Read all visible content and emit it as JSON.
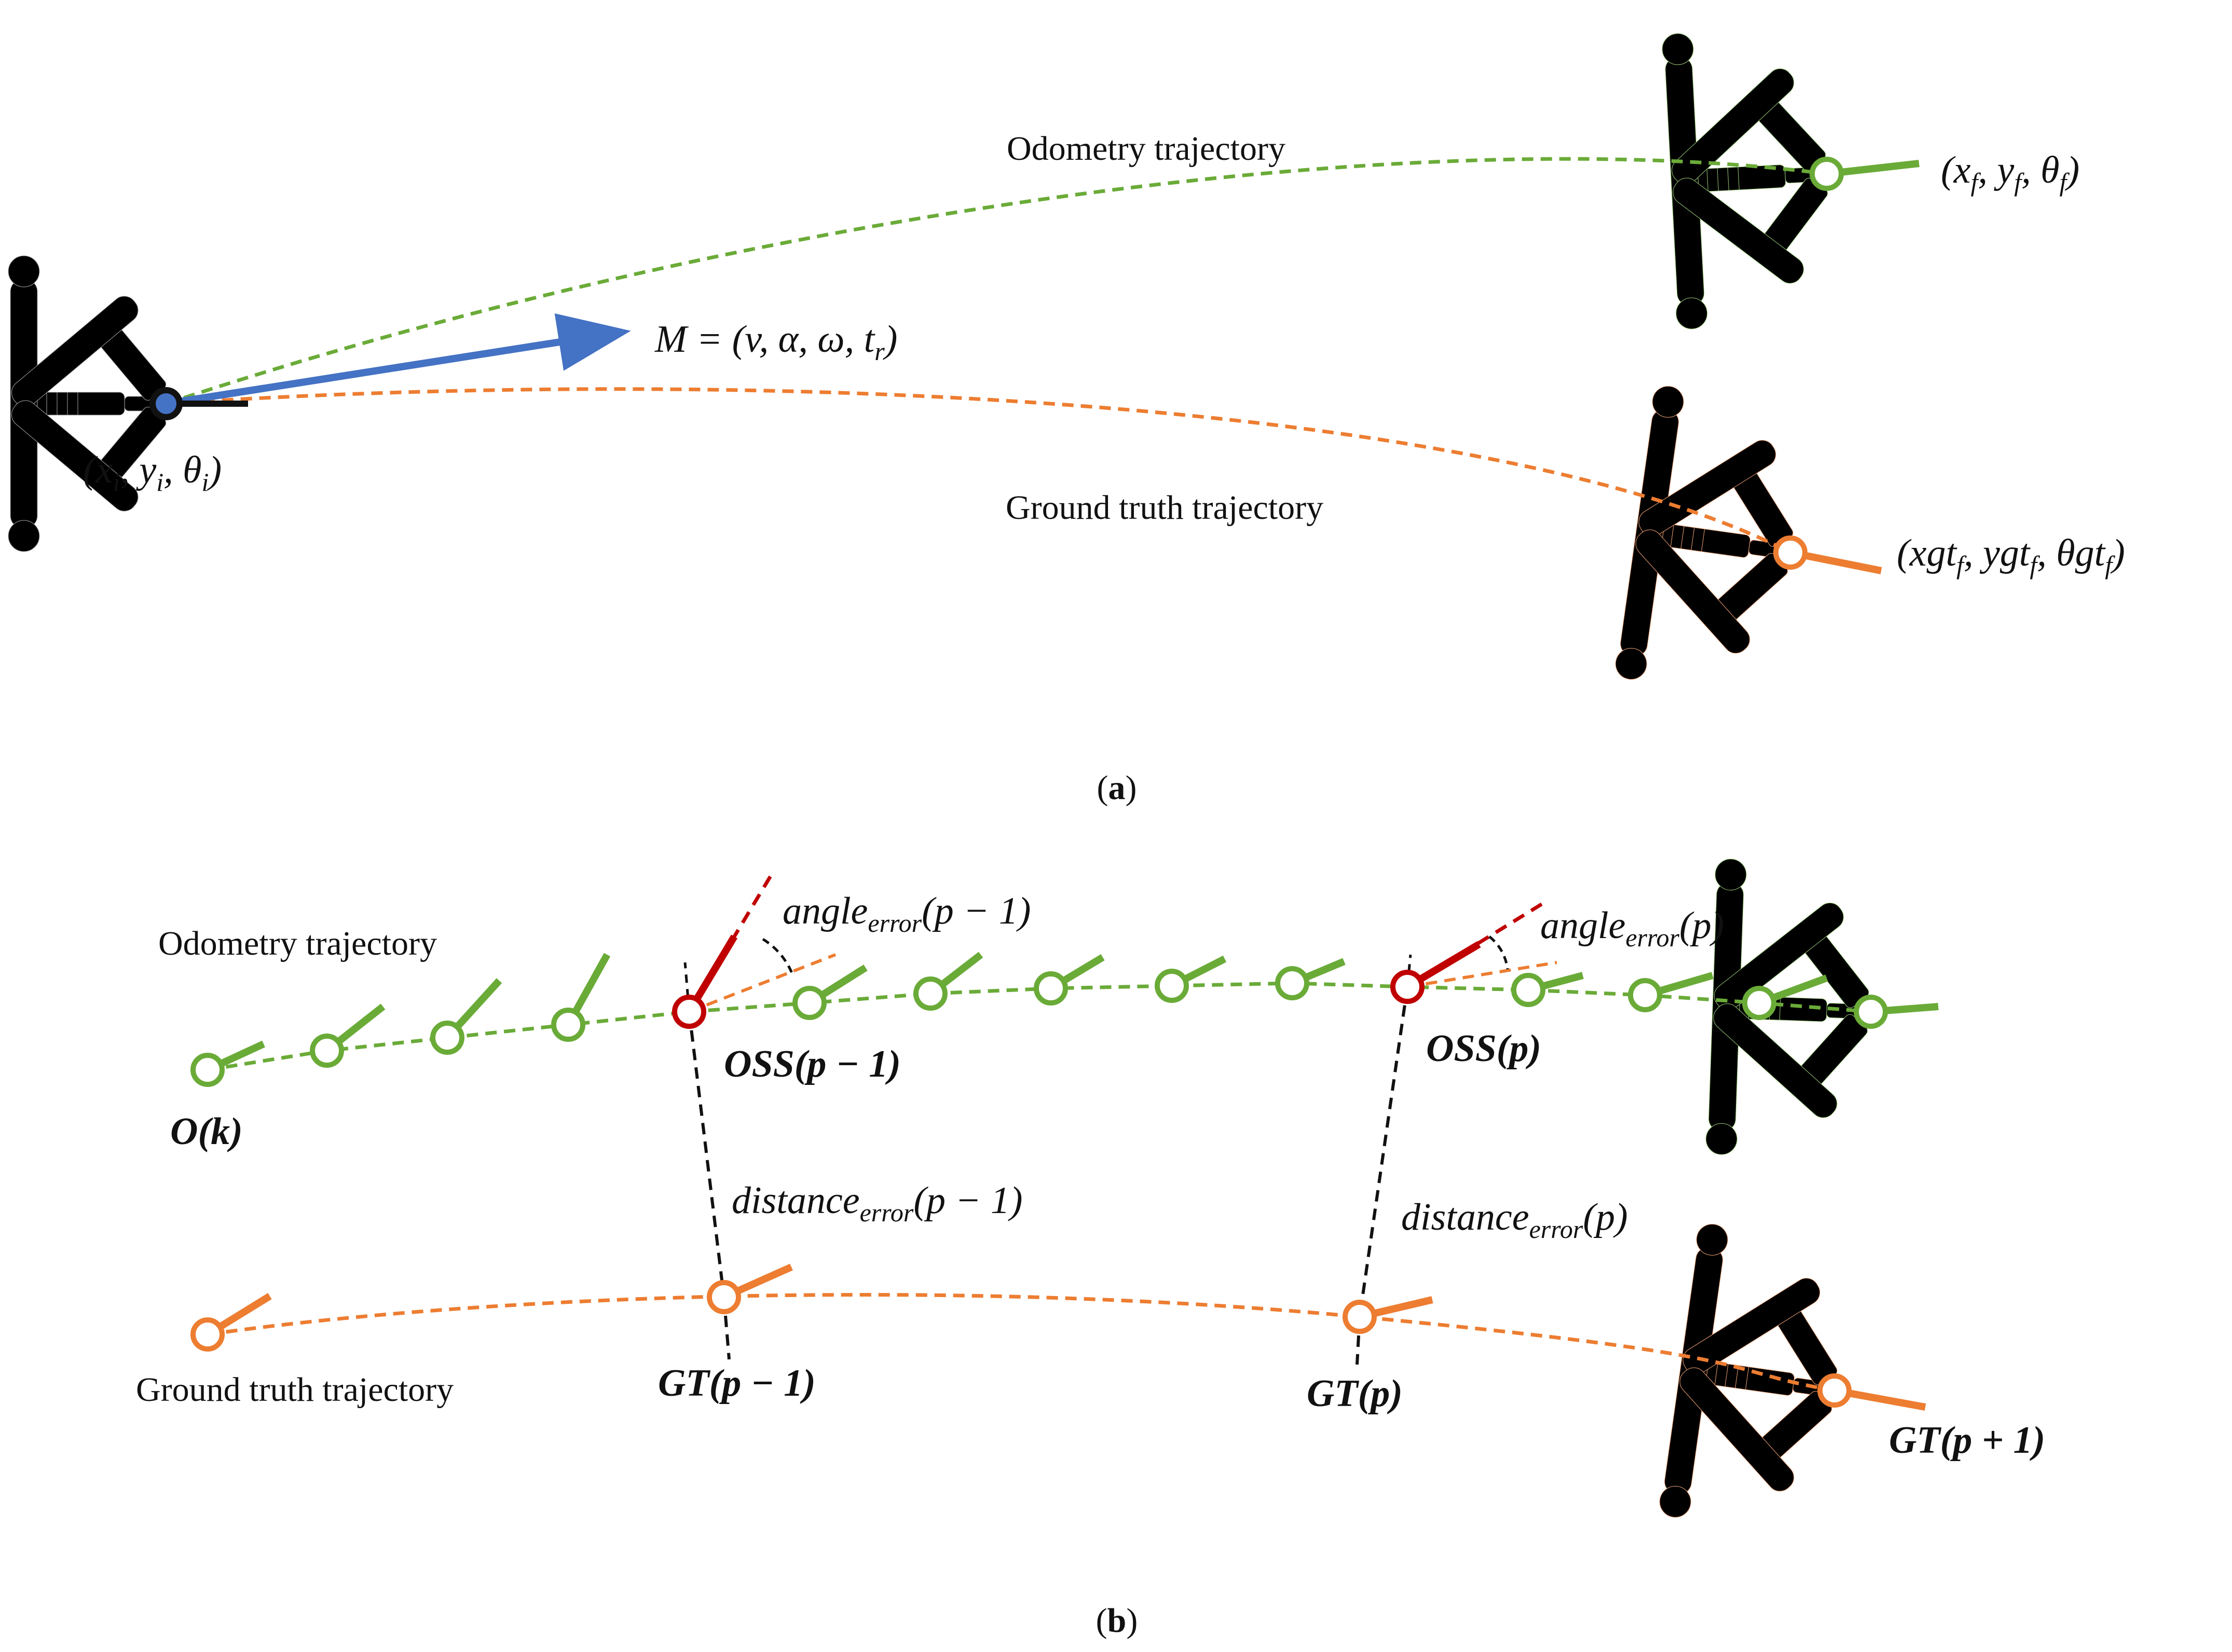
{
  "colors": {
    "odometry": "#6aab38",
    "ground_truth": "#ed7d31",
    "oss": "#c00000",
    "command": "#4472c4",
    "black": "#111111",
    "robot_gray": "#a6a6a6"
  },
  "panel_a": {
    "caption_open": "(",
    "caption_letter": "a",
    "caption_close": ")",
    "odometry_label": "Odometry trajectory",
    "ground_truth_label": "Ground truth trajectory",
    "command": {
      "prefix": "M = (v, α, ω, t",
      "sub": "r",
      "suffix": ")"
    },
    "initial_pose": {
      "a": "(x",
      "a_sub": "i",
      "b": ", y",
      "b_sub": "i",
      "c": ", θ",
      "c_sub": "i",
      "end": ")"
    },
    "final_odometry_pose": {
      "a": "(x",
      "a_sub": "f",
      "b": ", y",
      "b_sub": "f",
      "c": ", θ",
      "c_sub": "f",
      "end": ")"
    },
    "final_ground_truth_pose": {
      "a": "(xgt",
      "a_sub": "f",
      "b": ", ygt",
      "b_sub": "f",
      "c": ", θgt",
      "c_sub": "f",
      "end": ")"
    }
  },
  "panel_b": {
    "caption_open": "(",
    "caption_letter": "b",
    "caption_close": ")",
    "odometry_label": "Odometry trajectory",
    "ground_truth_label": "Ground truth trajectory",
    "odometry_sample_label": "O(k)",
    "oss_prev_label": "OSS(p − 1)",
    "oss_label": "OSS(p)",
    "gt_prev_label": "GT(p − 1)",
    "gt_label": "GT(p)",
    "gt_next_label": "GT(p + 1)",
    "angle_error_prev": {
      "base": "angle",
      "sub": "error",
      "arg": "(p − 1)"
    },
    "angle_error": {
      "base": "angle",
      "sub": "error",
      "arg": "(p)"
    },
    "distance_error_prev": {
      "base": "distance",
      "sub": "error",
      "arg": "(p − 1)"
    },
    "distance_error": {
      "base": "distance",
      "sub": "error",
      "arg": "(p)"
    }
  }
}
